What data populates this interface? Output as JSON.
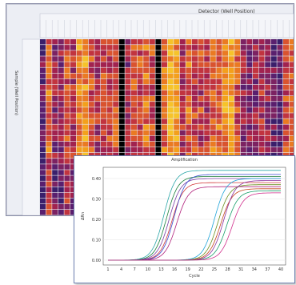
{
  "heatmap_window": {
    "title": "Detector (Well Position)",
    "row_axis_label": "Sample (Well Position)"
  },
  "amplification_window": {
    "title": "Amplification",
    "y_axis_label": "ΔRn",
    "x_axis_label": "Cycle",
    "y_ticks": [
      "0.40",
      "0.30",
      "0.20",
      "0.10",
      "0.00"
    ],
    "x_ticks": [
      "1",
      "4",
      "7",
      "10",
      "13",
      "16",
      "19",
      "22",
      "25",
      "28",
      "31",
      "34",
      "37",
      "40"
    ]
  },
  "colors": {
    "window_bg": "#eceef4",
    "heat_low": "#3a1f6b",
    "heat_mid": "#b8234a",
    "heat_high": "#f6b91e",
    "black_column": "#000000"
  }
}
